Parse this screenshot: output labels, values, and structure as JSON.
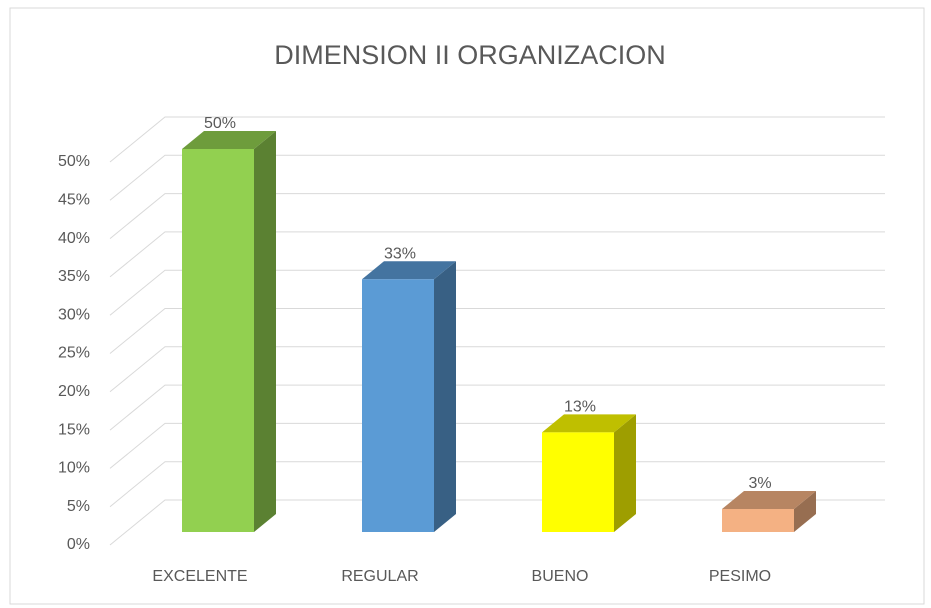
{
  "chart_data": {
    "type": "bar",
    "title": "DIMENSION II ORGANIZACION",
    "categories": [
      "EXCELENTE",
      "REGULAR",
      "BUENO",
      "PESIMO"
    ],
    "values": [
      50,
      33,
      13,
      3
    ],
    "value_labels": [
      "50%",
      "33%",
      "13%",
      "3%"
    ],
    "colors": [
      "#92d050",
      "#5b9bd5",
      "#ffff00",
      "#f4b183"
    ],
    "ylim": [
      0,
      50
    ],
    "yticks": [
      {
        "value": 0,
        "label": "0%"
      },
      {
        "value": 5,
        "label": "5%"
      },
      {
        "value": 10,
        "label": "10%"
      },
      {
        "value": 15,
        "label": "15%"
      },
      {
        "value": 20,
        "label": "20%"
      },
      {
        "value": 25,
        "label": "25%"
      },
      {
        "value": 30,
        "label": "30%"
      },
      {
        "value": 35,
        "label": "35%"
      },
      {
        "value": 40,
        "label": "40%"
      },
      {
        "value": 45,
        "label": "45%"
      },
      {
        "value": 50,
        "label": "50%"
      }
    ],
    "grid": true
  }
}
